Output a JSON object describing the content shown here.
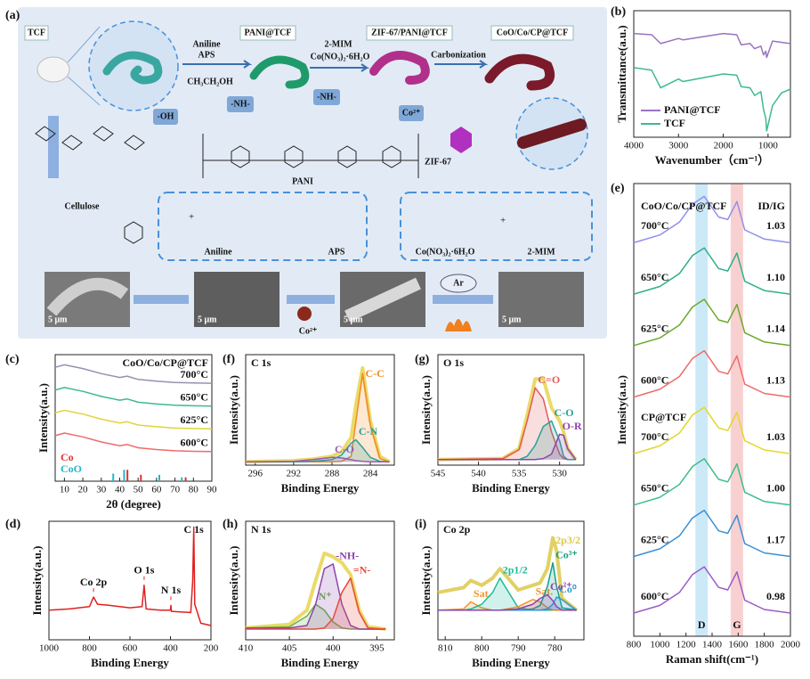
{
  "panel_a": {
    "label": "(a)",
    "tcf": "TCF",
    "pani_tcf": "PANI@TCF",
    "zif_pani_tcf": "ZIF-67/PANI@TCF",
    "product": "CoO/Co/CP@TCF",
    "aniline": "Aniline",
    "aps": "APS",
    "ethanol": "CH₃CH₂OH",
    "mim": "2-MIM",
    "cobalt_nitrate": "Co(NO₃)₂·6H₂O",
    "carbonization": "Carbonization",
    "oh": "-OH",
    "nh_1": "-NH-",
    "nh_2": "-NH-",
    "co2": "Co²⁺",
    "zif": "ZIF-67",
    "cellulose": "Cellulose",
    "pani": "PANI",
    "aniline_2": "Aniline",
    "aps_2": "APS",
    "cobalt_nitrate_2": "Co(NO₃)₂·6H₂O",
    "mim_2": "2-MIM",
    "scale_bars": [
      "5 μm",
      "5 μm",
      "5 μm",
      "5 μm"
    ],
    "ar": "Ar",
    "co2_2": "Co²⁺"
  },
  "chart_data": [
    {
      "type": "line",
      "panel_label": "(b)",
      "xlabel": "Wavenumber（cm⁻¹）",
      "ylabel": "Transmittance(a.u.)",
      "xlim": [
        4000,
        500
      ],
      "ylim": [
        0,
        10
      ],
      "xticks": [
        4000,
        3000,
        2000,
        1000
      ],
      "label_mode": "legend",
      "legend": "lower left",
      "x": [
        4000,
        3600,
        3400,
        3000,
        2900,
        2000,
        1700,
        1600,
        1400,
        1300,
        1160,
        1100,
        1050,
        1030,
        900,
        700,
        500
      ],
      "series": [
        {
          "name": "PANI@TCF",
          "color": "#9b72c0",
          "values": [
            8.2,
            8.1,
            7.4,
            7.8,
            7.7,
            8.2,
            8.1,
            7.3,
            7.4,
            7.0,
            7.2,
            6.5,
            6.8,
            6.3,
            7.6,
            7.5,
            7.4
          ]
        },
        {
          "name": "TCF",
          "color": "#3dbb8a",
          "values": [
            5.5,
            5.3,
            3.9,
            4.6,
            4.4,
            5.0,
            4.9,
            4.0,
            3.9,
            3.3,
            3.6,
            2.2,
            1.5,
            0.5,
            2.5,
            3.5,
            3.8
          ]
        }
      ]
    },
    {
      "type": "line",
      "panel_label": "(c)",
      "title": "CoO/Co/CP@TCF",
      "xlabel": "2θ (degree)",
      "ylabel": "Intensity(a.u.)",
      "xlim": [
        5,
        90
      ],
      "ylim": [
        -0.7,
        4.3
      ],
      "xticks": [
        10,
        20,
        30,
        40,
        50,
        60,
        70,
        80,
        90
      ],
      "label_mode": "right",
      "x": [
        5,
        10,
        20,
        30,
        40,
        44,
        50,
        60,
        70,
        80,
        90
      ],
      "series": [
        {
          "name": "700°C",
          "color": "#9a8fb0",
          "values": [
            3.8,
            3.9,
            3.75,
            3.55,
            3.4,
            3.45,
            3.32,
            3.25,
            3.2,
            3.18,
            3.17
          ]
        },
        {
          "name": "650°C",
          "color": "#3dbb8a",
          "values": [
            2.9,
            3.0,
            2.85,
            2.65,
            2.5,
            2.55,
            2.42,
            2.35,
            2.3,
            2.28,
            2.27
          ]
        },
        {
          "name": "625°C",
          "color": "#e0d43a",
          "values": [
            2.0,
            2.1,
            1.95,
            1.75,
            1.6,
            1.65,
            1.52,
            1.45,
            1.4,
            1.38,
            1.37
          ]
        },
        {
          "name": "600°C",
          "color": "#ee6b6b",
          "values": [
            1.1,
            1.2,
            1.05,
            0.85,
            0.7,
            0.75,
            0.62,
            0.55,
            0.5,
            0.48,
            0.47
          ]
        }
      ],
      "references": [
        {
          "name": "Co",
          "color": "#e03030",
          "x": [
            44.2,
            51.5,
            75.8
          ],
          "values": [
            0.45,
            0.25,
            0.15
          ]
        },
        {
          "name": "CoO",
          "color": "#20b8c8",
          "x": [
            36.5,
            42.4,
            61.5,
            73.7
          ],
          "values": [
            0.3,
            0.45,
            0.25,
            0.15
          ]
        }
      ]
    },
    {
      "type": "line",
      "panel_label": "(d)",
      "xlabel": "Binding Energy",
      "ylabel": "Intensity(a.u.)",
      "xlim": [
        1000,
        200
      ],
      "ylim": [
        0,
        10
      ],
      "xticks": [
        1000,
        800,
        600,
        400,
        200
      ],
      "label_mode": "none",
      "x": [
        1000,
        900,
        800,
        780,
        760,
        700,
        600,
        540,
        530,
        520,
        450,
        400,
        398,
        395,
        300,
        290,
        285,
        280,
        250,
        200
      ],
      "series": [
        {
          "color": "#e02020",
          "values": [
            2.5,
            2.6,
            2.8,
            3.6,
            3.0,
            2.9,
            2.7,
            2.8,
            4.6,
            2.6,
            2.5,
            2.5,
            2.9,
            2.4,
            2.3,
            5,
            9.5,
            3,
            1.4,
            1.2
          ]
        }
      ],
      "peak_labels": [
        {
          "text": "C 1s",
          "x": 285
        },
        {
          "text": "Co 2p",
          "x": 780
        },
        {
          "text": "O 1s",
          "x": 530
        },
        {
          "text": "N 1s",
          "x": 398
        }
      ]
    },
    {
      "type": "line",
      "panel_label": "(e)",
      "xlabel": "Raman shift(cm⁻¹)",
      "ylabel": "Intensity(a.u.)",
      "xlim": [
        800,
        2000
      ],
      "ylim": [
        0,
        8.8
      ],
      "xticks": [
        800,
        1000,
        1200,
        1400,
        1600,
        1800,
        2000
      ],
      "label_mode": "groups",
      "ratio_header": "ID/IG",
      "bands": [
        {
          "label": "D",
          "value": 1320,
          "color": "#bfe3f5"
        },
        {
          "label": "G",
          "value": 1590,
          "color": "#f8c4c4"
        }
      ],
      "x": [
        800,
        1000,
        1150,
        1250,
        1340,
        1450,
        1520,
        1590,
        1650,
        1800,
        2000
      ],
      "series_groups": [
        {
          "title": "CoO/Co/CP@TCF",
          "series": [
            {
              "name": "700°C",
              "ratio": "1.03",
              "color": "#8f8ff0",
              "values": [
                7.65,
                7.8,
                8.05,
                8.4,
                8.55,
                8.15,
                8.1,
                8.45,
                7.9,
                7.72,
                7.65
              ]
            },
            {
              "name": "650°C",
              "ratio": "1.10",
              "color": "#2fb08a",
              "values": [
                6.65,
                6.8,
                7.05,
                7.4,
                7.55,
                7.15,
                7.1,
                7.45,
                6.9,
                6.72,
                6.65
              ]
            },
            {
              "name": "625°C",
              "ratio": "1.14",
              "color": "#6aaa2a",
              "values": [
                5.65,
                5.8,
                6.05,
                6.4,
                6.55,
                6.15,
                6.1,
                6.45,
                5.9,
                5.72,
                5.65
              ]
            },
            {
              "name": "600°C",
              "ratio": "1.13",
              "color": "#ef6b6b",
              "values": [
                4.65,
                4.8,
                5.05,
                5.4,
                5.55,
                5.15,
                5.1,
                5.45,
                4.9,
                4.72,
                4.65
              ]
            }
          ]
        },
        {
          "title": "CP@TCF",
          "series": [
            {
              "name": "700°C",
              "ratio": "1.03",
              "color": "#e2d828",
              "values": [
                3.55,
                3.7,
                3.95,
                4.3,
                4.45,
                4.05,
                4.0,
                4.35,
                3.8,
                3.62,
                3.55
              ]
            },
            {
              "name": "650°C",
              "ratio": "1.00",
              "color": "#3cbf8a",
              "values": [
                2.55,
                2.7,
                2.95,
                3.3,
                3.45,
                3.05,
                3.0,
                3.35,
                2.8,
                2.62,
                2.55
              ]
            },
            {
              "name": "625°C",
              "ratio": "1.17",
              "color": "#3a8fd8",
              "values": [
                1.55,
                1.7,
                1.95,
                2.3,
                2.45,
                2.05,
                2.0,
                2.35,
                1.8,
                1.62,
                1.55
              ]
            },
            {
              "name": "600°C",
              "ratio": "0.98",
              "color": "#9b5cc8",
              "values": [
                0.45,
                0.6,
                0.85,
                1.2,
                1.35,
                0.95,
                0.9,
                1.25,
                0.7,
                0.52,
                0.45
              ]
            }
          ]
        }
      ]
    },
    {
      "type": "line",
      "panel_label": "(f)",
      "title": "C 1s",
      "xlabel": "Binding Energy",
      "ylabel": "Intensity(a.u.)",
      "xlim": [
        297,
        281.5
      ],
      "ylim": [
        0,
        10
      ],
      "xticks": [
        296,
        292,
        288,
        284
      ],
      "label_mode": "peak",
      "component_fill": true,
      "x": [
        297,
        292,
        290,
        288,
        287,
        286,
        285.5,
        284.8,
        284,
        283,
        282
      ],
      "series": [
        {
          "role": "envelope",
          "color": "#e8d44d",
          "values": [
            0.3,
            0.4,
            0.55,
            0.8,
            1.2,
            2.5,
            5.5,
            8.8,
            4,
            0.8,
            0.3
          ]
        },
        {
          "name": "C-C",
          "color": "#f08a24",
          "values": [
            0.3,
            0.3,
            0.3,
            0.3,
            0.35,
            0.8,
            4,
            8.3,
            3.6,
            0.6,
            0.3
          ]
        },
        {
          "name": "C-N",
          "color": "#2aa198",
          "values": [
            0.3,
            0.3,
            0.35,
            0.5,
            0.9,
            2.0,
            2.3,
            1.6,
            0.7,
            0.35,
            0.3
          ]
        },
        {
          "name": "C-O",
          "color": "#9b59b6",
          "values": [
            0.3,
            0.35,
            0.5,
            0.7,
            0.65,
            0.5,
            0.4,
            0.35,
            0.3,
            0.3,
            0.3
          ]
        }
      ]
    },
    {
      "type": "line",
      "panel_label": "(g)",
      "title": "O 1s",
      "xlabel": "Binding Energy",
      "ylabel": "Intensity(a.u.)",
      "xlim": [
        545,
        527
      ],
      "ylim": [
        0,
        10
      ],
      "xticks": [
        545,
        540,
        535,
        530
      ],
      "label_mode": "peak",
      "component_fill": true,
      "x": [
        545,
        537,
        535,
        534,
        533,
        532,
        531,
        530,
        529.5,
        529,
        528
      ],
      "series": [
        {
          "role": "envelope",
          "color": "#e8d44d",
          "values": [
            0.5,
            0.6,
            1.5,
            4.5,
            7.8,
            7.8,
            5.2,
            4,
            3,
            1.5,
            0.5
          ]
        },
        {
          "name": "C=O",
          "color": "#e05a5a",
          "values": [
            0.5,
            0.6,
            1.4,
            4,
            7,
            6,
            3,
            1,
            0.6,
            0.5,
            0.5
          ]
        },
        {
          "name": "C-O",
          "color": "#2aa198",
          "values": [
            0.5,
            0.5,
            0.5,
            0.8,
            1.8,
            3.5,
            4,
            2.2,
            0.8,
            0.5,
            0.5
          ]
        },
        {
          "name": "O-R",
          "color": "#8e44ad",
          "values": [
            0.5,
            0.5,
            0.5,
            0.5,
            0.5,
            0.6,
            1,
            2.8,
            2.7,
            1.5,
            0.5
          ]
        }
      ]
    },
    {
      "type": "line",
      "panel_label": "(h)",
      "title": "N 1s",
      "xlabel": "Binding Energy",
      "ylabel": "Intensity(a.u.)",
      "xlim": [
        410,
        393
      ],
      "ylim": [
        0,
        10
      ],
      "xticks": [
        410,
        405,
        400,
        395
      ],
      "label_mode": "peak",
      "component_fill": true,
      "x": [
        410,
        405,
        403,
        402,
        401,
        400,
        399,
        398,
        397,
        396,
        394
      ],
      "series": [
        {
          "role": "envelope",
          "color": "#e8d44d",
          "values": [
            1,
            1.3,
            2.5,
            5,
            7.3,
            7,
            6.5,
            5.5,
            2.5,
            1.1,
            0.9
          ]
        },
        {
          "name": "N⁺",
          "color": "#6ab04c",
          "values": [
            1,
            1.1,
            2,
            3,
            2.5,
            1.5,
            1,
            0.9,
            0.9,
            0.9,
            0.9
          ]
        },
        {
          "name": "-NH-",
          "color": "#8e44ad",
          "values": [
            1,
            1,
            1.2,
            3,
            6,
            6.4,
            3,
            1.2,
            0.9,
            0.9,
            0.9
          ]
        },
        {
          "name": "=N-",
          "color": "#e74c3c",
          "values": [
            0.9,
            0.9,
            0.9,
            0.9,
            1,
            1.8,
            4,
            5.2,
            2.3,
            1,
            0.9
          ]
        }
      ]
    },
    {
      "type": "line",
      "panel_label": "(i)",
      "title": "Co 2p",
      "xlabel": "Binding Energy",
      "ylabel": "Intensity(a.u.)",
      "xlim": [
        812,
        772
      ],
      "ylim": [
        0,
        10
      ],
      "xticks": [
        810,
        800,
        790,
        780
      ],
      "label_mode": "peak",
      "component_fill": true,
      "x": [
        812,
        805,
        803,
        800,
        797,
        795,
        790,
        786,
        784,
        782,
        780.5,
        779.5,
        778,
        774
      ],
      "series": [
        {
          "name": "2p3/2",
          "role": "envelope",
          "color": "#dcc84a",
          "values": [
            4,
            4.4,
            5,
            4.6,
            5.2,
            6,
            4.2,
            4.6,
            4.8,
            6,
            8.6,
            7.5,
            3.5,
            2.5
          ]
        },
        {
          "name": "Sat.",
          "color": "#f0932b",
          "values": [
            2.5,
            2.6,
            3.2,
            2.7,
            2.5,
            2.5,
            2.5,
            2.5,
            2.5,
            2.5,
            2.5,
            2.5,
            2.5,
            2.5
          ]
        },
        {
          "name": "2p1/2",
          "color": "#1abc9c",
          "values": [
            2.5,
            2.5,
            2.6,
            3,
            4,
            5.2,
            2.7,
            2.5,
            2.5,
            2.5,
            2.5,
            2.5,
            2.5,
            2.5
          ]
        },
        {
          "name": "Sat.",
          "color": "#f0932b",
          "values": [
            2.5,
            2.5,
            2.5,
            2.5,
            2.5,
            2.5,
            2.8,
            3.4,
            3.2,
            2.7,
            2.5,
            2.5,
            2.5,
            2.5
          ]
        },
        {
          "name": "Co³⁺",
          "color": "#16a085",
          "values": [
            2.5,
            2.5,
            2.5,
            2.5,
            2.5,
            2.5,
            2.5,
            2.6,
            2.9,
            4.5,
            6.5,
            4.5,
            2.7,
            2.5
          ]
        },
        {
          "name": "Co⁰",
          "color": "#3498db",
          "values": [
            2.5,
            2.5,
            2.5,
            2.5,
            2.5,
            2.5,
            2.5,
            2.5,
            2.5,
            2.6,
            3,
            3.6,
            3.4,
            2.5
          ]
        },
        {
          "name": "Co²⁺",
          "color": "#8e44ad",
          "values": [
            2.5,
            2.5,
            2.5,
            2.5,
            2.5,
            2.5,
            2.6,
            3,
            3.5,
            3.8,
            3.3,
            2.8,
            2.5,
            2.5
          ]
        }
      ]
    }
  ]
}
